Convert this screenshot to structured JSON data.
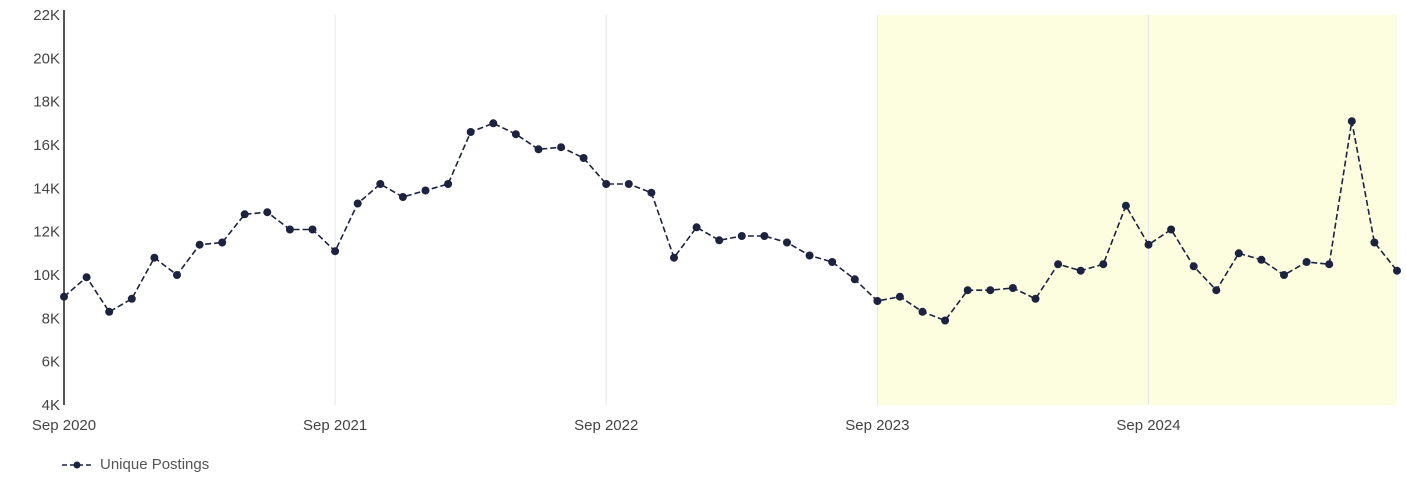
{
  "chart_data": {
    "type": "line",
    "title": "",
    "xlabel": "",
    "ylabel": "",
    "ylim": [
      4000,
      22000
    ],
    "y_ticks": [
      {
        "value": 4000,
        "label": "4K"
      },
      {
        "value": 6000,
        "label": "6K"
      },
      {
        "value": 8000,
        "label": "8K"
      },
      {
        "value": 10000,
        "label": "10K"
      },
      {
        "value": 12000,
        "label": "12K"
      },
      {
        "value": 14000,
        "label": "14K"
      },
      {
        "value": 16000,
        "label": "16K"
      },
      {
        "value": 18000,
        "label": "18K"
      },
      {
        "value": 20000,
        "label": "20K"
      },
      {
        "value": 22000,
        "label": "22K"
      }
    ],
    "x_ticks": [
      {
        "index": 0,
        "label": "Sep 2020"
      },
      {
        "index": 12,
        "label": "Sep 2021"
      },
      {
        "index": 24,
        "label": "Sep 2022"
      },
      {
        "index": 36,
        "label": "Sep 2023"
      },
      {
        "index": 48,
        "label": "Sep 2024"
      }
    ],
    "x_vertical_gridlines": true,
    "highlight_start_index": 36,
    "highlight_color": "#fdfde0",
    "line_color": "#1c2340",
    "legend_position": "bottom-left",
    "series": [
      {
        "name": "Unique Postings",
        "values": [
          9000,
          9900,
          8300,
          8900,
          10800,
          10000,
          11400,
          11500,
          12800,
          12900,
          12100,
          12100,
          11100,
          13300,
          14200,
          13600,
          13900,
          14200,
          16600,
          17000,
          16500,
          15800,
          15900,
          15400,
          14200,
          14200,
          13800,
          10800,
          12200,
          11600,
          11800,
          11800,
          11500,
          10900,
          10600,
          9800,
          8800,
          9000,
          8300,
          7900,
          9300,
          9300,
          9400,
          8900,
          10500,
          10200,
          10500,
          13200,
          11400,
          12100,
          10400,
          9300,
          11000,
          10700,
          10000,
          10600,
          10500,
          17100,
          11500,
          10200
        ]
      }
    ]
  }
}
